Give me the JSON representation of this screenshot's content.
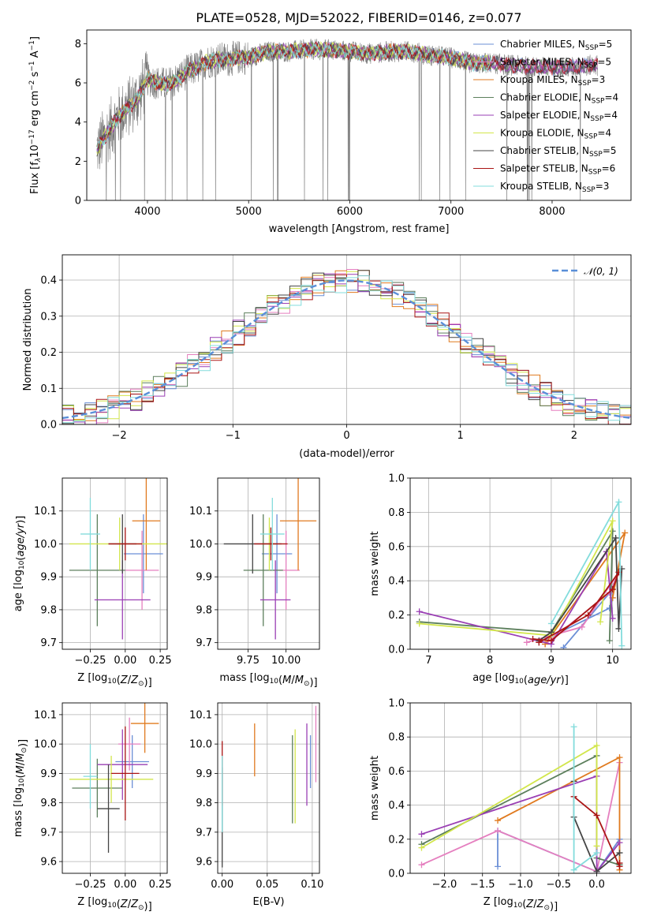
{
  "chart_data": [
    {
      "type": "line",
      "title": "PLATE=0528, MJD=52022, FIBERID=0146, z=0.077",
      "xlabel": "wavelength [Angstrom, rest frame]",
      "ylabel_parts": [
        "Flux [f",
        "λ",
        "10",
        "−17",
        " erg cm",
        "−2",
        " s",
        "−1",
        " A",
        "−1",
        "]"
      ],
      "xlim": [
        3400,
        8780
      ],
      "ylim": [
        0,
        8.7
      ],
      "xticks": [
        4000,
        5000,
        6000,
        7000,
        8000
      ],
      "yticks": [
        0,
        2,
        4,
        6,
        8
      ],
      "legend_position": "upper right",
      "series": [
        {
          "name": "Chabrier MILES, N",
          "sub": "SSP",
          "suffix": "=5",
          "color": "#6b8fd6"
        },
        {
          "name": "Salpeter MILES, N",
          "sub": "SSP",
          "suffix": "=5",
          "color": "#e57fbf"
        },
        {
          "name": "Kroupa MILES, N",
          "sub": "SSP",
          "suffix": "=3",
          "color": "#e07a1f"
        },
        {
          "name": "Chabrier ELODIE, N",
          "sub": "SSP",
          "suffix": "=4",
          "color": "#5c7f5c"
        },
        {
          "name": "Salpeter ELODIE, N",
          "sub": "SSP",
          "suffix": "=4",
          "color": "#9a3fb4"
        },
        {
          "name": "Kroupa ELODIE, N",
          "sub": "SSP",
          "suffix": "=4",
          "color": "#d2e64b"
        },
        {
          "name": "Chabrier STELIB, N",
          "sub": "SSP",
          "suffix": "=5",
          "color": "#444444"
        },
        {
          "name": "Salpeter STELIB, N",
          "sub": "SSP",
          "suffix": "=6",
          "color": "#aa1515"
        },
        {
          "name": "Kroupa STELIB, N",
          "sub": "SSP",
          "suffix": "=3",
          "color": "#83dcdc"
        }
      ],
      "continuum": [
        [
          3500,
          2.6
        ],
        [
          3600,
          3.4
        ],
        [
          3700,
          4.2
        ],
        [
          3800,
          4.7
        ],
        [
          3900,
          5.2
        ],
        [
          4000,
          6.2
        ],
        [
          4100,
          6.0
        ],
        [
          4200,
          5.9
        ],
        [
          4300,
          6.2
        ],
        [
          4400,
          6.6
        ],
        [
          4500,
          6.8
        ],
        [
          4600,
          7.1
        ],
        [
          4700,
          7.2
        ],
        [
          4800,
          7.2
        ],
        [
          4900,
          7.3
        ],
        [
          5000,
          7.3
        ],
        [
          5200,
          7.6
        ],
        [
          5400,
          7.6
        ],
        [
          5600,
          7.7
        ],
        [
          5800,
          7.7
        ],
        [
          6000,
          7.6
        ],
        [
          6200,
          7.5
        ],
        [
          6400,
          7.6
        ],
        [
          6600,
          7.6
        ],
        [
          6800,
          7.4
        ],
        [
          7000,
          7.3
        ],
        [
          7200,
          7.0
        ],
        [
          7400,
          7.0
        ],
        [
          7600,
          6.9
        ],
        [
          7800,
          6.8
        ],
        [
          8000,
          6.8
        ],
        [
          8200,
          6.8
        ],
        [
          8400,
          6.9
        ]
      ]
    },
    {
      "type": "step",
      "xlabel": "(data-model)/error",
      "ylabel": "Normed distribution",
      "xlim": [
        -2.5,
        2.5
      ],
      "ylim": [
        0,
        0.47
      ],
      "xticks": [
        -2,
        -1,
        0,
        1,
        2
      ],
      "xtick_labels": [
        "−2",
        "−1",
        "0",
        "1",
        "2"
      ],
      "yticks": [
        0.0,
        0.1,
        0.2,
        0.3,
        0.4
      ],
      "ytick_labels": [
        "0.0",
        "0.1",
        "0.2",
        "0.3",
        "0.4"
      ],
      "bin_width": 0.1,
      "legend_label": "𝒩(0, 1)",
      "gauss_color": "#5a8fd8",
      "series_colors": [
        "#6b8fd6",
        "#e57fbf",
        "#e07a1f",
        "#5c7f5c",
        "#9a3fb4",
        "#d2e64b",
        "#444444",
        "#aa1515",
        "#83dcdc"
      ]
    },
    {
      "type": "errorbar",
      "xlabel": "Z [log10(Z/Z⊙)]",
      "ylabel": "age  [log10(age/yr)]",
      "xlim": [
        -0.45,
        0.3
      ],
      "ylim": [
        9.68,
        10.2
      ],
      "xticks": [
        -0.25,
        0.0,
        0.25
      ],
      "xtick_labels": [
        "−0.25",
        "0.00",
        "0.25"
      ],
      "yticks": [
        9.7,
        9.8,
        9.9,
        10.0,
        10.1
      ],
      "ytick_labels": [
        "9.7",
        "9.8",
        "9.9",
        "10.0",
        "10.1"
      ],
      "points": [
        {
          "x": 0.13,
          "y": 9.97,
          "xerr": 0.14,
          "yerr": 0.12,
          "color": "#6b8fd6"
        },
        {
          "x": 0.12,
          "y": 9.92,
          "xerr": 0.12,
          "yerr": 0.12,
          "color": "#e57fbf"
        },
        {
          "x": 0.15,
          "y": 10.07,
          "xerr": 0.1,
          "yerr": 0.15,
          "color": "#e07a1f"
        },
        {
          "x": -0.2,
          "y": 9.92,
          "xerr": 0.2,
          "yerr": 0.17,
          "color": "#5c7f5c"
        },
        {
          "x": -0.02,
          "y": 9.83,
          "xerr": 0.2,
          "yerr": 0.12,
          "color": "#9a3fb4"
        },
        {
          "x": -0.04,
          "y": 10.0,
          "xerr": 0.36,
          "yerr": 0.08,
          "color": "#d2e64b"
        },
        {
          "x": -0.02,
          "y": 10.0,
          "xerr": 0.1,
          "yerr": 0.09,
          "color": "#444444"
        },
        {
          "x": 0.0,
          "y": 10.0,
          "xerr": 0.12,
          "yerr": 0.05,
          "color": "#aa1515"
        },
        {
          "x": -0.25,
          "y": 10.03,
          "xerr": 0.07,
          "yerr": 0.11,
          "color": "#83dcdc"
        }
      ]
    },
    {
      "type": "errorbar",
      "xlabel": "mass [log10(M/M⊙)]",
      "xlim": [
        9.55,
        10.22
      ],
      "ylim": [
        9.68,
        10.2
      ],
      "xticks": [
        9.75,
        10.0
      ],
      "xtick_labels": [
        "9.75",
        "10.00"
      ],
      "yticks": [
        9.7,
        9.8,
        9.9,
        10.0,
        10.1
      ],
      "ytick_labels": [
        "9.7",
        "9.8",
        "9.9",
        "10.0",
        "10.1"
      ],
      "points": [
        {
          "x": 9.94,
          "y": 9.97,
          "xerr": 0.1,
          "yerr": 0.12,
          "color": "#6b8fd6"
        },
        {
          "x": 10.0,
          "y": 9.92,
          "xerr": 0.09,
          "yerr": 0.12,
          "color": "#e57fbf"
        },
        {
          "x": 10.08,
          "y": 10.07,
          "xerr": 0.12,
          "yerr": 0.15,
          "color": "#e07a1f"
        },
        {
          "x": 9.85,
          "y": 9.92,
          "xerr": 0.13,
          "yerr": 0.17,
          "color": "#5c7f5c"
        },
        {
          "x": 9.93,
          "y": 9.83,
          "xerr": 0.1,
          "yerr": 0.12,
          "color": "#9a3fb4"
        },
        {
          "x": 9.89,
          "y": 10.0,
          "xerr": 0.05,
          "yerr": 0.08,
          "color": "#d2e64b"
        },
        {
          "x": 9.78,
          "y": 10.0,
          "xerr": 0.19,
          "yerr": 0.09,
          "color": "#444444"
        },
        {
          "x": 9.9,
          "y": 10.0,
          "xerr": 0.11,
          "yerr": 0.05,
          "color": "#aa1515"
        },
        {
          "x": 9.91,
          "y": 10.03,
          "xerr": 0.08,
          "yerr": 0.11,
          "color": "#83dcdc"
        }
      ]
    },
    {
      "type": "line",
      "xlabel": "age  [log10(age/yr)]",
      "ylabel": "mass weight",
      "xlim": [
        6.7,
        10.3
      ],
      "ylim": [
        0,
        1.0
      ],
      "xticks": [
        7,
        8,
        9,
        10
      ],
      "xtick_labels": [
        "7",
        "8",
        "9",
        "10"
      ],
      "yticks": [
        0.0,
        0.2,
        0.4,
        0.6,
        0.8,
        1.0
      ],
      "ytick_labels": [
        "0.0",
        "0.2",
        "0.4",
        "0.6",
        "0.8",
        "1.0"
      ],
      "series": [
        {
          "color": "#6b8fd6",
          "points": [
            [
              9.2,
              0.01
            ],
            [
              10.0,
              0.35
            ],
            [
              10.0,
              0.3
            ],
            [
              9.95,
              0.24
            ],
            [
              8.8,
              0.04
            ]
          ]
        },
        {
          "color": "#e57fbf",
          "points": [
            [
              8.6,
              0.04
            ],
            [
              9.5,
              0.13
            ],
            [
              10.1,
              0.45
            ],
            [
              9.95,
              0.33
            ],
            [
              8.9,
              0.03
            ]
          ]
        },
        {
          "color": "#e07a1f",
          "points": [
            [
              8.9,
              0.03
            ],
            [
              10.2,
              0.68
            ],
            [
              10.0,
              0.3
            ]
          ]
        },
        {
          "color": "#5c7f5c",
          "points": [
            [
              6.85,
              0.16
            ],
            [
              9.0,
              0.1
            ],
            [
              10.0,
              0.69
            ],
            [
              9.95,
              0.05
            ]
          ]
        },
        {
          "color": "#9a3fb4",
          "points": [
            [
              6.85,
              0.22
            ],
            [
              9.0,
              0.03
            ],
            [
              9.9,
              0.57
            ],
            [
              10.0,
              0.18
            ]
          ]
        },
        {
          "color": "#d2e64b",
          "points": [
            [
              6.85,
              0.15
            ],
            [
              9.0,
              0.08
            ],
            [
              10.0,
              0.75
            ],
            [
              9.8,
              0.16
            ]
          ]
        },
        {
          "color": "#444444",
          "points": [
            [
              8.8,
              0.05
            ],
            [
              9.0,
              0.1
            ],
            [
              10.05,
              0.65
            ],
            [
              10.1,
              0.12
            ],
            [
              10.15,
              0.47
            ]
          ]
        },
        {
          "color": "#aa1515",
          "points": [
            [
              8.7,
              0.06
            ],
            [
              9.0,
              0.05
            ],
            [
              10.0,
              0.35
            ],
            [
              10.1,
              0.45
            ],
            [
              9.6,
              0.2
            ],
            [
              8.8,
              0.04
            ]
          ]
        },
        {
          "color": "#83dcdc",
          "points": [
            [
              9.0,
              0.15
            ],
            [
              10.1,
              0.86
            ],
            [
              10.15,
              0.02
            ]
          ]
        }
      ]
    },
    {
      "type": "errorbar",
      "xlabel": "Z [log10(Z/Z⊙)]",
      "ylabel": "mass [log10(M/M⊙)]",
      "xlim": [
        -0.45,
        0.3
      ],
      "ylim": [
        9.56,
        10.14
      ],
      "xticks": [
        -0.25,
        0.0,
        0.25
      ],
      "xtick_labels": [
        "−0.25",
        "0.00",
        "0.25"
      ],
      "yticks": [
        9.6,
        9.7,
        9.8,
        9.9,
        10.0,
        10.1
      ],
      "ytick_labels": [
        "9.6",
        "9.7",
        "9.8",
        "9.9",
        "10.0",
        "10.1"
      ],
      "points": [
        {
          "x": 0.05,
          "y": 9.94,
          "xerr": 0.12,
          "yerr": 0.09,
          "color": "#6b8fd6"
        },
        {
          "x": 0.03,
          "y": 10.0,
          "xerr": 0.08,
          "yerr": 0.09,
          "color": "#e57fbf"
        },
        {
          "x": 0.14,
          "y": 10.07,
          "xerr": 0.1,
          "yerr": 0.1,
          "color": "#e07a1f"
        },
        {
          "x": -0.2,
          "y": 9.85,
          "xerr": 0.18,
          "yerr": 0.1,
          "color": "#5c7f5c"
        },
        {
          "x": -0.02,
          "y": 9.93,
          "xerr": 0.18,
          "yerr": 0.12,
          "color": "#9a3fb4"
        },
        {
          "x": -0.1,
          "y": 9.88,
          "xerr": 0.3,
          "yerr": 0.08,
          "color": "#d2e64b"
        },
        {
          "x": -0.12,
          "y": 9.78,
          "xerr": 0.08,
          "yerr": 0.15,
          "color": "#444444"
        },
        {
          "x": 0.0,
          "y": 9.9,
          "xerr": 0.1,
          "yerr": 0.16,
          "color": "#aa1515"
        },
        {
          "x": -0.25,
          "y": 9.89,
          "xerr": 0.05,
          "yerr": 0.11,
          "color": "#83dcdc"
        }
      ]
    },
    {
      "type": "errorbar",
      "xlabel": "E(B-V)",
      "xlim": [
        -0.005,
        0.108
      ],
      "ylim": [
        9.56,
        10.14
      ],
      "xticks": [
        0.0,
        0.05,
        0.1
      ],
      "xtick_labels": [
        "0.00",
        "0.05",
        "0.10"
      ],
      "yticks": [
        9.6,
        9.7,
        9.8,
        9.9,
        10.0,
        10.1
      ],
      "ytick_labels": [
        "9.6",
        "9.7",
        "9.8",
        "9.9",
        "10.0",
        "10.1"
      ],
      "points": [
        {
          "x": 0.098,
          "y": 9.94,
          "xerr": 0,
          "yerr": 0.09,
          "color": "#6b8fd6"
        },
        {
          "x": 0.104,
          "y": 10.0,
          "xerr": 0,
          "yerr": 0.13,
          "color": "#e57fbf"
        },
        {
          "x": 0.036,
          "y": 9.98,
          "xerr": 0,
          "yerr": 0.09,
          "color": "#e07a1f"
        },
        {
          "x": 0.078,
          "y": 9.88,
          "xerr": 0,
          "yerr": 0.15,
          "color": "#5c7f5c"
        },
        {
          "x": 0.094,
          "y": 9.93,
          "xerr": 0,
          "yerr": 0.14,
          "color": "#9a3fb4"
        },
        {
          "x": 0.081,
          "y": 9.89,
          "xerr": 0,
          "yerr": 0.16,
          "color": "#d2e64b"
        },
        {
          "x": 0.0,
          "y": 9.75,
          "xerr": 0,
          "yerr": 0.17,
          "color": "#444444"
        },
        {
          "x": 0.0,
          "y": 9.9,
          "xerr": 0,
          "yerr": 0.11,
          "color": "#aa1515"
        },
        {
          "x": 0.0,
          "y": 9.83,
          "xerr": 0,
          "yerr": 0.13,
          "color": "#83dcdc"
        }
      ]
    },
    {
      "type": "line",
      "xlabel": "Z [log10(Z/Z⊙)]",
      "ylabel": "mass weight",
      "xlim": [
        -2.45,
        0.45
      ],
      "ylim": [
        0,
        1.0
      ],
      "xticks": [
        -2.0,
        -1.5,
        -1.0,
        -0.5,
        0.0
      ],
      "xtick_labels": [
        "−2.0",
        "−1.5",
        "−1.0",
        "−0.5",
        "0.0"
      ],
      "yticks": [
        0.0,
        0.2,
        0.4,
        0.6,
        0.8,
        1.0
      ],
      "ytick_labels": [
        "0.0",
        "0.2",
        "0.4",
        "0.6",
        "0.8",
        "1.0"
      ],
      "series": [
        {
          "color": "#6b8fd6",
          "points": [
            [
              -1.3,
              0.04
            ],
            [
              -1.3,
              0.25
            ],
            [
              0.0,
              0.01
            ],
            [
              0.3,
              0.2
            ],
            [
              0.3,
              0.05
            ]
          ]
        },
        {
          "color": "#e57fbf",
          "points": [
            [
              -2.3,
              0.05
            ],
            [
              -1.3,
              0.25
            ],
            [
              0.0,
              0.01
            ],
            [
              0.3,
              0.65
            ]
          ]
        },
        {
          "color": "#e07a1f",
          "points": [
            [
              -1.3,
              0.31
            ],
            [
              0.3,
              0.68
            ],
            [
              0.3,
              0.02
            ]
          ]
        },
        {
          "color": "#5c7f5c",
          "points": [
            [
              -2.3,
              0.17
            ],
            [
              0.0,
              0.69
            ],
            [
              0.0,
              0.09
            ],
            [
              0.3,
              0.05
            ]
          ]
        },
        {
          "color": "#9a3fb4",
          "points": [
            [
              -2.3,
              0.23
            ],
            [
              0.0,
              0.57
            ],
            [
              0.0,
              0.01
            ],
            [
              0.3,
              0.18
            ]
          ]
        },
        {
          "color": "#d2e64b",
          "points": [
            [
              -2.3,
              0.15
            ],
            [
              0.0,
              0.75
            ],
            [
              0.0,
              0.16
            ]
          ]
        },
        {
          "color": "#444444",
          "points": [
            [
              -0.3,
              0.54
            ],
            [
              -0.3,
              0.33
            ],
            [
              0.0,
              0.01
            ],
            [
              0.3,
              0.12
            ]
          ]
        },
        {
          "color": "#aa1515",
          "points": [
            [
              -0.3,
              0.45
            ],
            [
              0.0,
              0.34
            ],
            [
              0.3,
              0.04
            ],
            [
              0.3,
              0.06
            ]
          ]
        },
        {
          "color": "#83dcdc",
          "points": [
            [
              -0.3,
              0.86
            ],
            [
              -0.3,
              0.02
            ],
            [
              0.0,
              0.12
            ]
          ]
        }
      ]
    }
  ]
}
